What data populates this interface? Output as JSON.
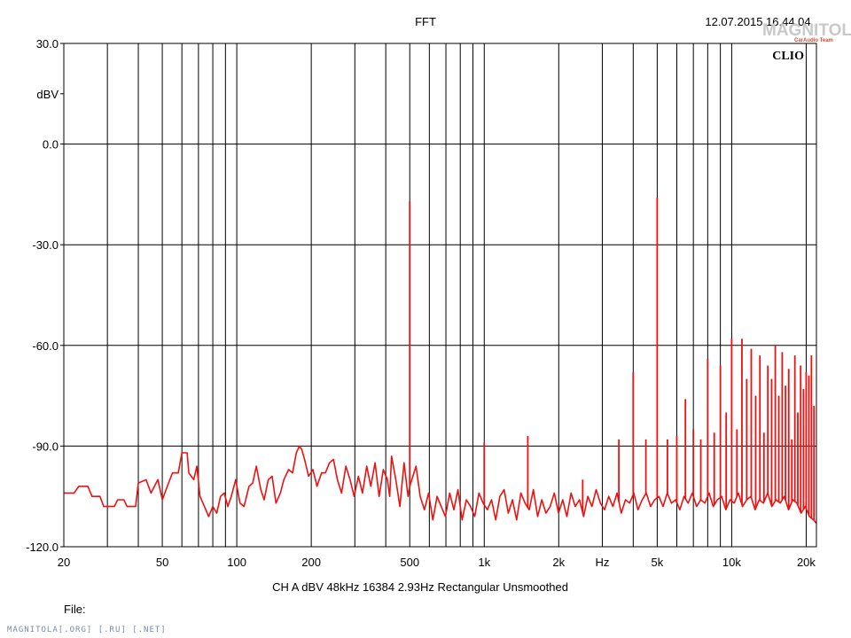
{
  "header": {
    "title": "FFT",
    "timestamp": "12.07.2015 16.44.04",
    "brand": "CLIO"
  },
  "footer": {
    "settings": "CH A   dBV   48kHz   16384   2.93Hz   Rectangular   Unsmoothed",
    "file_label": "File:",
    "watermark": "MAGNITOLA[.ORG] [.RU] [.NET]",
    "logo_text": "MAGNITOLA",
    "logo_sub": "CarAudio Team"
  },
  "chart_data": {
    "type": "line",
    "title": "FFT",
    "xlabel": "",
    "ylabel": "dBV",
    "x_scale": "log",
    "xlim": [
      20,
      22000
    ],
    "ylim": [
      -120,
      30
    ],
    "grid": true,
    "series_color": "#ee1111",
    "y_ticks": [
      {
        "value": 30,
        "label": "30.0"
      },
      {
        "value": 0,
        "label": "0.0"
      },
      {
        "value": -30,
        "label": "-30.0"
      },
      {
        "value": -60,
        "label": "-60.0"
      },
      {
        "value": -90,
        "label": "-90.0"
      },
      {
        "value": -120,
        "label": "-120.0"
      }
    ],
    "y_unit_label": {
      "value": 15,
      "label": "dBV"
    },
    "x_ticks": [
      {
        "value": 20,
        "label": "20"
      },
      {
        "value": 50,
        "label": "50"
      },
      {
        "value": 100,
        "label": "100"
      },
      {
        "value": 200,
        "label": "200"
      },
      {
        "value": 500,
        "label": "500"
      },
      {
        "value": 1000,
        "label": "1k"
      },
      {
        "value": 2000,
        "label": "2k"
      },
      {
        "value": 3000,
        "label": "Hz"
      },
      {
        "value": 5000,
        "label": "5k"
      },
      {
        "value": 10000,
        "label": "10k"
      },
      {
        "value": 20000,
        "label": "20k"
      }
    ],
    "series": [
      {
        "points": [
          [
            20,
            -104
          ],
          [
            22,
            -104
          ],
          [
            23,
            -102
          ],
          [
            25,
            -102
          ],
          [
            26,
            -105
          ],
          [
            28,
            -105
          ],
          [
            29,
            -108
          ],
          [
            32,
            -108
          ],
          [
            33,
            -106
          ],
          [
            35,
            -106
          ],
          [
            36,
            -108
          ],
          [
            39,
            -108
          ],
          [
            40,
            -101
          ],
          [
            43,
            -100
          ],
          [
            45,
            -104
          ],
          [
            48,
            -100
          ],
          [
            50,
            -106
          ],
          [
            53,
            -101
          ],
          [
            55,
            -98
          ],
          [
            58,
            -98
          ],
          [
            60,
            -92
          ],
          [
            63,
            -92
          ],
          [
            64,
            -98
          ],
          [
            67,
            -100
          ],
          [
            69,
            -96
          ],
          [
            71,
            -105
          ],
          [
            74,
            -108
          ],
          [
            77,
            -111
          ],
          [
            80,
            -108
          ],
          [
            83,
            -110
          ],
          [
            86,
            -105
          ],
          [
            89,
            -104
          ],
          [
            92,
            -108
          ],
          [
            95,
            -105
          ],
          [
            99,
            -100
          ],
          [
            103,
            -107
          ],
          [
            107,
            -108
          ],
          [
            112,
            -102
          ],
          [
            116,
            -101
          ],
          [
            120,
            -96
          ],
          [
            125,
            -103
          ],
          [
            129,
            -106
          ],
          [
            134,
            -100
          ],
          [
            139,
            -99
          ],
          [
            144,
            -107
          ],
          [
            150,
            -104
          ],
          [
            155,
            -100
          ],
          [
            162,
            -97
          ],
          [
            168,
            -98
          ],
          [
            174,
            -92
          ],
          [
            179,
            -90
          ],
          [
            183,
            -91
          ],
          [
            188,
            -94
          ],
          [
            195,
            -99
          ],
          [
            203,
            -97
          ],
          [
            211,
            -102
          ],
          [
            220,
            -98
          ],
          [
            228,
            -98
          ],
          [
            237,
            -95
          ],
          [
            246,
            -94
          ],
          [
            255,
            -100
          ],
          [
            265,
            -104
          ],
          [
            276,
            -96
          ],
          [
            287,
            -100
          ],
          [
            298,
            -105
          ],
          [
            310,
            -99
          ],
          [
            322,
            -104
          ],
          [
            335,
            -96
          ],
          [
            348,
            -102
          ],
          [
            362,
            -95
          ],
          [
            376,
            -105
          ],
          [
            391,
            -97
          ],
          [
            406,
            -100
          ],
          [
            415,
            -105
          ],
          [
            422,
            -93
          ],
          [
            439,
            -100
          ],
          [
            456,
            -108
          ],
          [
            474,
            -95
          ],
          [
            492,
            -105
          ],
          [
            500,
            -102
          ],
          [
            510,
            -100
          ],
          [
            530,
            -96
          ],
          [
            551,
            -105
          ],
          [
            573,
            -109
          ],
          [
            596,
            -104
          ],
          [
            620,
            -112
          ],
          [
            645,
            -105
          ],
          [
            670,
            -108
          ],
          [
            697,
            -111
          ],
          [
            725,
            -104
          ],
          [
            754,
            -109
          ],
          [
            783,
            -103
          ],
          [
            814,
            -112
          ],
          [
            847,
            -106
          ],
          [
            880,
            -108
          ],
          [
            915,
            -111
          ],
          [
            952,
            -104
          ],
          [
            990,
            -107
          ],
          [
            1030,
            -109
          ],
          [
            1070,
            -106
          ],
          [
            1113,
            -112
          ],
          [
            1157,
            -105
          ],
          [
            1203,
            -103
          ],
          [
            1251,
            -110
          ],
          [
            1300,
            -106
          ],
          [
            1352,
            -112
          ],
          [
            1406,
            -104
          ],
          [
            1462,
            -107
          ],
          [
            1520,
            -109
          ],
          [
            1580,
            -103
          ],
          [
            1643,
            -111
          ],
          [
            1708,
            -106
          ],
          [
            1776,
            -110
          ],
          [
            1847,
            -108
          ],
          [
            1920,
            -104
          ],
          [
            1996,
            -110
          ],
          [
            2075,
            -106
          ],
          [
            2158,
            -111
          ],
          [
            2243,
            -104
          ],
          [
            2332,
            -108
          ],
          [
            2425,
            -106
          ],
          [
            2521,
            -111
          ],
          [
            2621,
            -105
          ],
          [
            2725,
            -108
          ],
          [
            2833,
            -103
          ],
          [
            2946,
            -107
          ],
          [
            3063,
            -109
          ],
          [
            3184,
            -105
          ],
          [
            3311,
            -108
          ],
          [
            3442,
            -104
          ],
          [
            3579,
            -110
          ],
          [
            3721,
            -106
          ],
          [
            3869,
            -107
          ],
          [
            4022,
            -104
          ],
          [
            4182,
            -109
          ],
          [
            4348,
            -106
          ],
          [
            4520,
            -104
          ],
          [
            4700,
            -108
          ],
          [
            4886,
            -106
          ],
          [
            5080,
            -105
          ],
          [
            5282,
            -108
          ],
          [
            5491,
            -104
          ],
          [
            5709,
            -107
          ],
          [
            5936,
            -106
          ],
          [
            6171,
            -109
          ],
          [
            6416,
            -105
          ],
          [
            6671,
            -107
          ],
          [
            6935,
            -104
          ],
          [
            7211,
            -108
          ],
          [
            7497,
            -106
          ],
          [
            7794,
            -107
          ],
          [
            8103,
            -104
          ],
          [
            8425,
            -108
          ],
          [
            8759,
            -106
          ],
          [
            9107,
            -105
          ],
          [
            9468,
            -109
          ],
          [
            9844,
            -106
          ],
          [
            10234,
            -107
          ],
          [
            10640,
            -104
          ],
          [
            11062,
            -108
          ],
          [
            11501,
            -106
          ],
          [
            11957,
            -105
          ],
          [
            12432,
            -109
          ],
          [
            12925,
            -106
          ],
          [
            13438,
            -107
          ],
          [
            13971,
            -104
          ],
          [
            14525,
            -108
          ],
          [
            15101,
            -106
          ],
          [
            15700,
            -107
          ],
          [
            16324,
            -105
          ],
          [
            16972,
            -109
          ],
          [
            17645,
            -106
          ],
          [
            18345,
            -107
          ],
          [
            19073,
            -110
          ],
          [
            19830,
            -108
          ],
          [
            20617,
            -111
          ],
          [
            21435,
            -112
          ],
          [
            22000,
            -113
          ]
        ],
        "spikes": [
          [
            60,
            -92
          ],
          [
            500,
            -17
          ],
          [
            1000,
            -89
          ],
          [
            1500,
            -87
          ],
          [
            2500,
            -100
          ],
          [
            3500,
            -88
          ],
          [
            4000,
            -68
          ],
          [
            4500,
            -88
          ],
          [
            5000,
            -16
          ],
          [
            5500,
            -88
          ],
          [
            6000,
            -87
          ],
          [
            6500,
            -76
          ],
          [
            7000,
            -85
          ],
          [
            7500,
            -88
          ],
          [
            8000,
            -64
          ],
          [
            8500,
            -86
          ],
          [
            9000,
            -66
          ],
          [
            9500,
            -80
          ],
          [
            10000,
            -58
          ],
          [
            10500,
            -85
          ],
          [
            11000,
            -58
          ],
          [
            11500,
            -70
          ],
          [
            12000,
            -61
          ],
          [
            12500,
            -75
          ],
          [
            13000,
            -63
          ],
          [
            13500,
            -86
          ],
          [
            14000,
            -66
          ],
          [
            14500,
            -70
          ],
          [
            15000,
            -60
          ],
          [
            15500,
            -75
          ],
          [
            16000,
            -62
          ],
          [
            16500,
            -72
          ],
          [
            17000,
            -67
          ],
          [
            17500,
            -88
          ],
          [
            18000,
            -63
          ],
          [
            18500,
            -80
          ],
          [
            19000,
            -66
          ],
          [
            19500,
            -73
          ],
          [
            20000,
            -68
          ],
          [
            20500,
            -69
          ],
          [
            21000,
            -63
          ],
          [
            21500,
            -78
          ]
        ]
      }
    ]
  }
}
